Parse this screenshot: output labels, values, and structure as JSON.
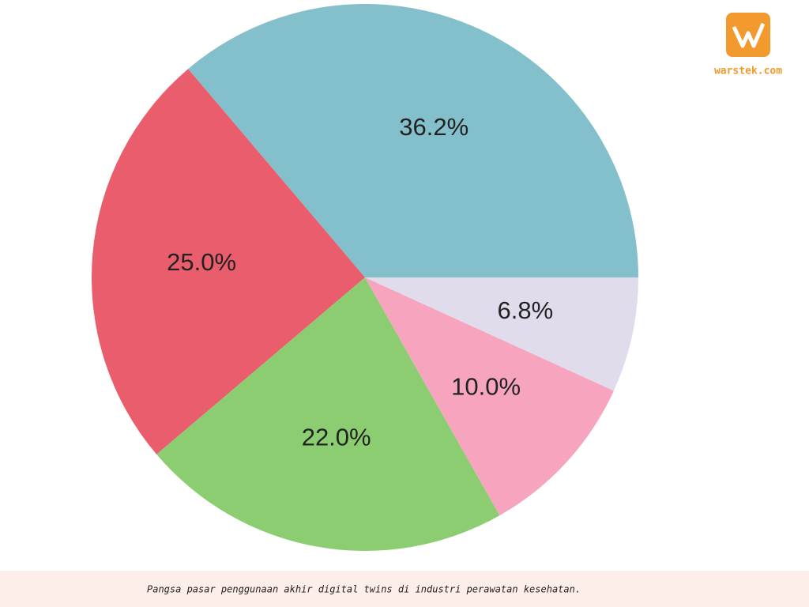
{
  "chart_data": {
    "type": "pie",
    "values": [
      36.2,
      25.0,
      22.0,
      10.0,
      6.8
    ],
    "value_labels": [
      "36.2%",
      "25.0%",
      "22.0%",
      "10.0%",
      "6.8%"
    ],
    "colors": [
      "#84c0cc",
      "#e95d6c",
      "#8ccd72",
      "#f7a5bf",
      "#e0dcec"
    ]
  },
  "caption": "Pangsa pasar penggunaan akhir digital twins di industri perawatan kesehatan.",
  "logo_text": "warstek.com"
}
